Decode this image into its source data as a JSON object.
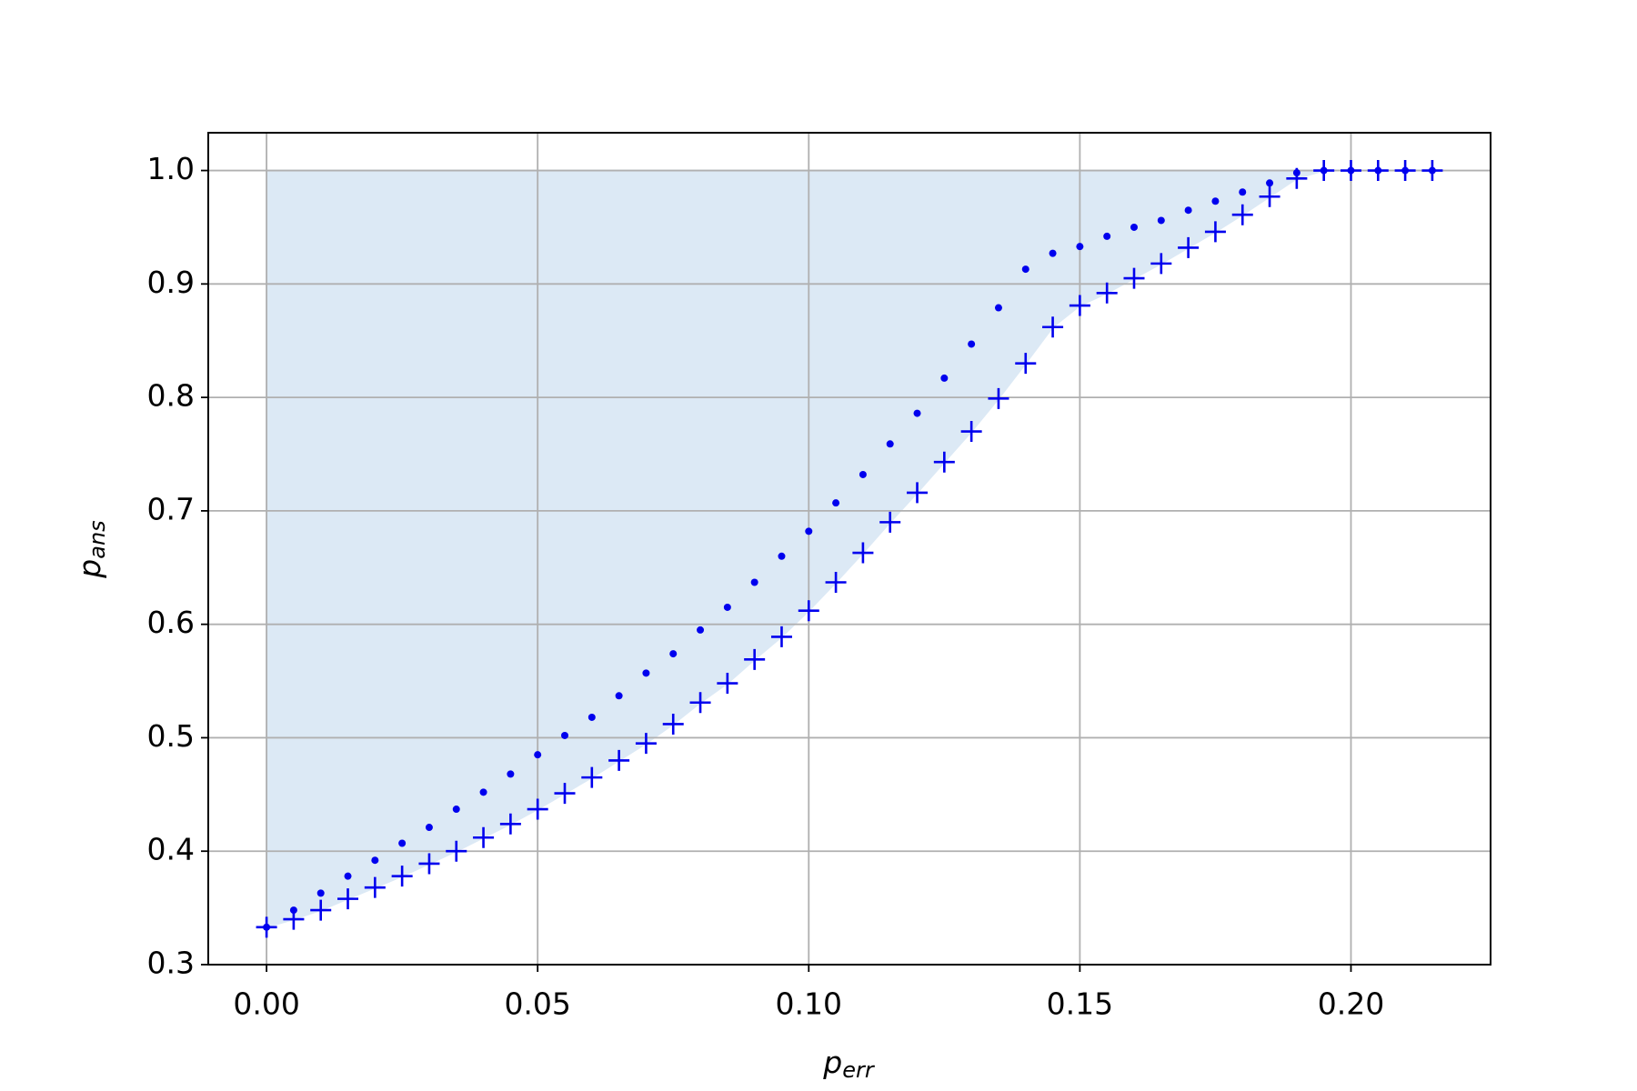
{
  "chart_data": {
    "type": "scatter",
    "xlabel": {
      "text": "p",
      "subscript": "err"
    },
    "ylabel": {
      "text": "p",
      "subscript": "ans"
    },
    "x": [
      0,
      0.005,
      0.01,
      0.015,
      0.02,
      0.025,
      0.03,
      0.035,
      0.04,
      0.045,
      0.05,
      0.055,
      0.06,
      0.065,
      0.07,
      0.075,
      0.08,
      0.085,
      0.09,
      0.095,
      0.1,
      0.105,
      0.11,
      0.115,
      0.12,
      0.125,
      0.13,
      0.135,
      0.14,
      0.145,
      0.15,
      0.155,
      0.16,
      0.165,
      0.17,
      0.175,
      0.18,
      0.185,
      0.19,
      0.195,
      0.2,
      0.205,
      0.21,
      0.215
    ],
    "series": [
      {
        "marker": "dot",
        "color": "#0000ee",
        "values": [
          0.333,
          0.348,
          0.363,
          0.378,
          0.392,
          0.407,
          0.421,
          0.437,
          0.452,
          0.468,
          0.485,
          0.502,
          0.518,
          0.537,
          0.557,
          0.574,
          0.595,
          0.615,
          0.637,
          0.66,
          0.682,
          0.707,
          0.732,
          0.759,
          0.786,
          0.817,
          0.847,
          0.879,
          0.913,
          0.927,
          0.933,
          0.942,
          0.95,
          0.956,
          0.965,
          0.973,
          0.981,
          0.989,
          0.998,
          1,
          1,
          1,
          1,
          1
        ]
      },
      {
        "marker": "plus",
        "color": "#0000ee",
        "fill_to": 1,
        "fill_color": "#dce9f5",
        "values": [
          0.333,
          0.34,
          0.348,
          0.358,
          0.368,
          0.378,
          0.389,
          0.4,
          0.412,
          0.424,
          0.437,
          0.451,
          0.465,
          0.48,
          0.495,
          0.512,
          0.531,
          0.548,
          0.569,
          0.589,
          0.612,
          0.637,
          0.663,
          0.69,
          0.716,
          0.743,
          0.77,
          0.799,
          0.83,
          0.862,
          0.881,
          0.892,
          0.905,
          0.918,
          0.932,
          0.946,
          0.961,
          0.977,
          0.993,
          1,
          1,
          1,
          1,
          1
        ]
      }
    ],
    "xlim": [
      -0.01075,
      0.22575
    ],
    "ylim": [
      0.3,
      1.0333
    ],
    "xticks": [
      {
        "value": 0,
        "label": "0.00"
      },
      {
        "value": 0.05,
        "label": "0.05"
      },
      {
        "value": 0.1,
        "label": "0.10"
      },
      {
        "value": 0.15,
        "label": "0.15"
      },
      {
        "value": 0.2,
        "label": "0.20"
      }
    ],
    "yticks": [
      0.3,
      0.4,
      0.5,
      0.6,
      0.7,
      0.8,
      0.9,
      {
        "value": 1,
        "label": "1.0"
      }
    ],
    "grid": true
  }
}
